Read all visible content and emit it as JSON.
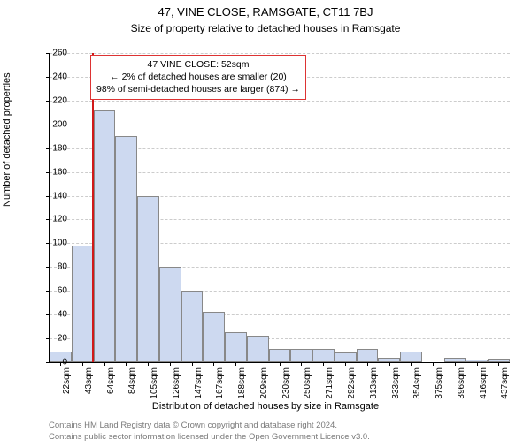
{
  "header": {
    "title": "47, VINE CLOSE, RAMSGATE, CT11 7BJ",
    "subtitle": "Size of property relative to detached houses in Ramsgate"
  },
  "chart": {
    "type": "histogram",
    "ylabel": "Number of detached properties",
    "xlabel": "Distribution of detached houses by size in Ramsgate",
    "ylim": [
      0,
      260
    ],
    "ytick_step": 20,
    "background_color": "#ffffff",
    "grid_color": "#cccccc",
    "bar_fill": "#cdd9f0",
    "bar_border": "#888888",
    "marker_color": "#d11919",
    "marker_sqm": 52,
    "x_start_sqm": 12,
    "x_bin_width_sqm": 20.5,
    "x_tick_offset_sqm": 10,
    "bars": [
      {
        "label": "22sqm",
        "value": 9
      },
      {
        "label": "43sqm",
        "value": 98
      },
      {
        "label": "64sqm",
        "value": 212
      },
      {
        "label": "84sqm",
        "value": 190
      },
      {
        "label": "105sqm",
        "value": 140
      },
      {
        "label": "126sqm",
        "value": 80
      },
      {
        "label": "147sqm",
        "value": 60
      },
      {
        "label": "167sqm",
        "value": 42
      },
      {
        "label": "188sqm",
        "value": 25
      },
      {
        "label": "209sqm",
        "value": 22
      },
      {
        "label": "230sqm",
        "value": 11
      },
      {
        "label": "250sqm",
        "value": 11
      },
      {
        "label": "271sqm",
        "value": 11
      },
      {
        "label": "292sqm",
        "value": 8
      },
      {
        "label": "313sqm",
        "value": 11
      },
      {
        "label": "333sqm",
        "value": 4
      },
      {
        "label": "354sqm",
        "value": 9
      },
      {
        "label": "375sqm",
        "value": 0
      },
      {
        "label": "396sqm",
        "value": 4
      },
      {
        "label": "416sqm",
        "value": 2
      },
      {
        "label": "437sqm",
        "value": 3
      }
    ]
  },
  "annotation": {
    "line1": "47 VINE CLOSE: 52sqm",
    "line2": "← 2% of detached houses are smaller (20)",
    "line3": "98% of semi-detached houses are larger (874) →"
  },
  "footer": {
    "line1": "Contains HM Land Registry data © Crown copyright and database right 2024.",
    "line2": "Contains public sector information licensed under the Open Government Licence v3.0."
  }
}
